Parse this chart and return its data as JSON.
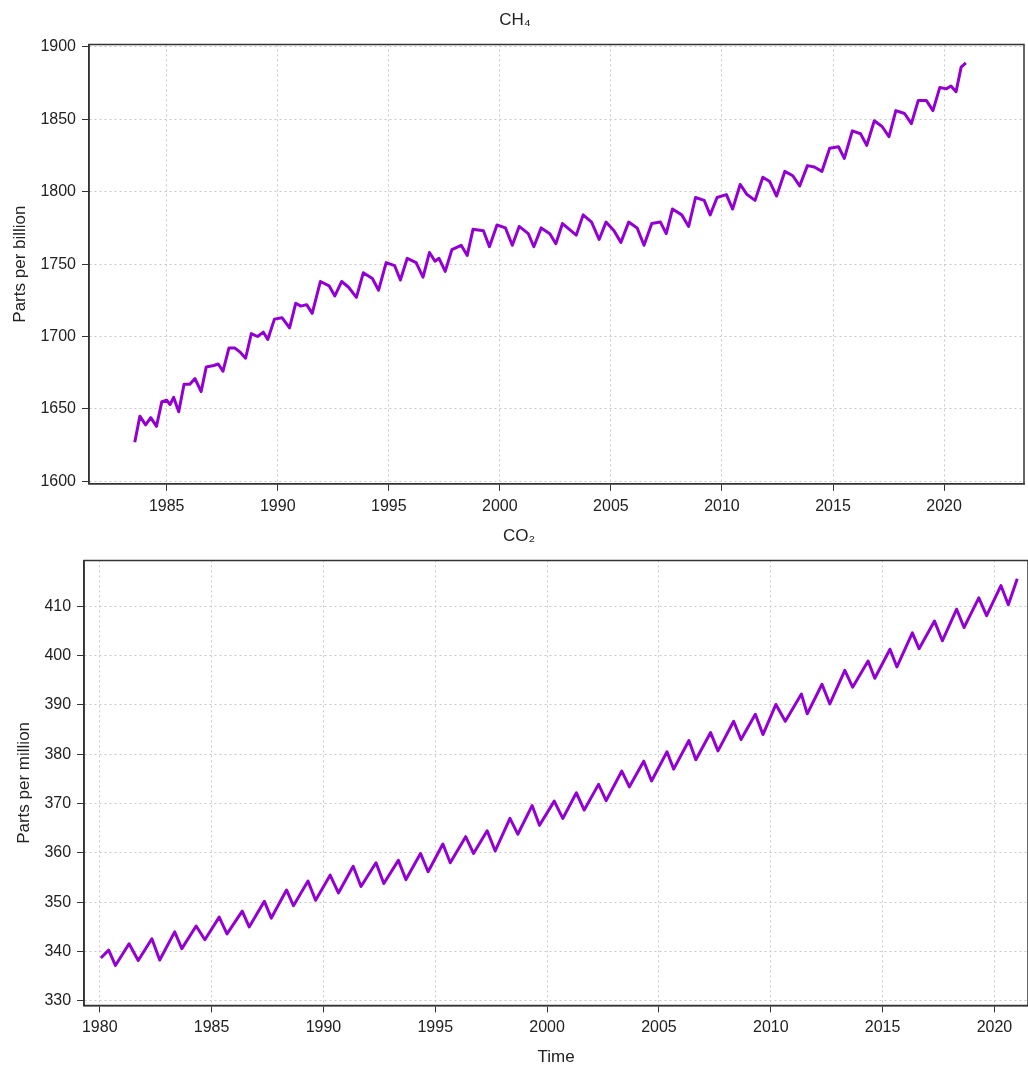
{
  "chart_data": [
    {
      "type": "line",
      "title": "CH₄",
      "ylabel": "Parts per billion",
      "xlim": [
        1981.5,
        2023.6
      ],
      "xticks": [
        1985,
        1990,
        1995,
        2000,
        2005,
        2010,
        2015,
        2020
      ],
      "ylim": [
        1598.3,
        1901.7
      ],
      "yticks": [
        1600,
        1650,
        1700,
        1750,
        1800,
        1850,
        1900
      ],
      "grid": true,
      "series": [
        {
          "color": "#9400d3",
          "x": [
            1983.56,
            1983.79,
            1984.05,
            1984.28,
            1984.54,
            1984.78,
            1985.0,
            1985.15,
            1985.31,
            1985.54,
            1985.78,
            1986.04,
            1986.27,
            1986.55,
            1986.78,
            1987.12,
            1987.32,
            1987.53,
            1987.8,
            1988.07,
            1988.32,
            1988.55,
            1988.81,
            1989.09,
            1989.35,
            1989.55,
            1989.85,
            1990.19,
            1990.53,
            1990.81,
            1991.04,
            1991.3,
            1991.55,
            1991.92,
            1992.31,
            1992.57,
            1992.88,
            1993.19,
            1993.54,
            1993.85,
            1994.26,
            1994.54,
            1994.88,
            1995.26,
            1995.52,
            1995.83,
            1996.23,
            1996.54,
            1996.83,
            1997.08,
            1997.26,
            1997.54,
            1997.84,
            1998.26,
            1998.53,
            1998.79,
            1999.26,
            1999.53,
            1999.87,
            2000.25,
            2000.56,
            2000.87,
            2001.28,
            2001.53,
            2001.86,
            2002.25,
            2002.52,
            2002.82,
            2003.13,
            2003.44,
            2003.75,
            2004.13,
            2004.47,
            2004.78,
            2005.14,
            2005.45,
            2005.8,
            2006.18,
            2006.49,
            2006.84,
            2007.23,
            2007.49,
            2007.77,
            2008.19,
            2008.5,
            2008.81,
            2009.2,
            2009.47,
            2009.78,
            2010.2,
            2010.48,
            2010.82,
            2011.13,
            2011.49,
            2011.84,
            2012.15,
            2012.46,
            2012.83,
            2013.19,
            2013.5,
            2013.85,
            2014.16,
            2014.5,
            2014.85,
            2015.25,
            2015.51,
            2015.87,
            2016.24,
            2016.52,
            2016.86,
            2017.21,
            2017.52,
            2017.83,
            2018.22,
            2018.53,
            2018.84,
            2019.2,
            2019.5,
            2019.81,
            2020.11,
            2020.31,
            2020.54,
            2020.77,
            2020.98
          ],
          "values": [
            1627,
            1645,
            1639,
            1644,
            1638,
            1655,
            1656,
            1653,
            1658,
            1648,
            1667,
            1667,
            1671,
            1662,
            1679,
            1680,
            1681,
            1676,
            1692,
            1692,
            1689,
            1685,
            1702,
            1700,
            1703,
            1698,
            1712,
            1713,
            1706,
            1723,
            1721,
            1722,
            1716,
            1738,
            1735,
            1728,
            1738,
            1734,
            1727,
            1744,
            1740,
            1732,
            1751,
            1749,
            1739,
            1754,
            1751,
            1741,
            1758,
            1752,
            1754,
            1745,
            1760,
            1763,
            1756,
            1774,
            1773,
            1762,
            1777,
            1775,
            1763,
            1776,
            1771,
            1762,
            1775,
            1771,
            1764,
            1778,
            1774,
            1770,
            1784,
            1779,
            1767,
            1779,
            1773,
            1765,
            1779,
            1775,
            1763,
            1778,
            1779,
            1771,
            1788,
            1784,
            1776,
            1796,
            1794,
            1784,
            1796,
            1798,
            1788,
            1805,
            1798,
            1794,
            1810,
            1807,
            1797,
            1814,
            1811,
            1804,
            1818,
            1817,
            1814,
            1830,
            1831,
            1823,
            1842,
            1840,
            1832,
            1849,
            1845,
            1838,
            1856,
            1854,
            1847,
            1863,
            1863,
            1856,
            1872,
            1871,
            1873,
            1869,
            1886,
            1889
          ]
        }
      ]
    },
    {
      "type": "line",
      "title": "CO₂",
      "xlabel": "Time",
      "ylabel": "Parts per million",
      "xlim": [
        1979.3,
        2021.5
      ],
      "xticks": [
        1980,
        1985,
        1990,
        1995,
        2000,
        2005,
        2010,
        2015,
        2020
      ],
      "ylim": [
        329.1,
        419.3
      ],
      "yticks": [
        330,
        340,
        350,
        360,
        370,
        380,
        390,
        400,
        410
      ],
      "grid": true,
      "series": [
        {
          "color": "#9400d3",
          "x": [
            1980.05,
            1980.4,
            1980.7,
            1981.31,
            1981.72,
            1982.33,
            1982.68,
            1983.35,
            1983.67,
            1984.31,
            1984.7,
            1985.34,
            1985.69,
            1986.37,
            1986.68,
            1987.36,
            1987.67,
            1988.35,
            1988.66,
            1989.31,
            1989.65,
            1990.3,
            1990.67,
            1991.33,
            1991.68,
            1992.35,
            1992.7,
            1993.35,
            1993.69,
            1994.34,
            1994.68,
            1995.34,
            1995.67,
            1996.36,
            1996.71,
            1997.32,
            1997.68,
            1998.34,
            1998.69,
            1999.33,
            1999.66,
            2000.32,
            2000.7,
            2001.31,
            2001.66,
            2002.3,
            2002.64,
            2003.34,
            2003.68,
            2004.32,
            2004.67,
            2005.36,
            2005.66,
            2006.34,
            2006.65,
            2007.31,
            2007.64,
            2008.34,
            2008.67,
            2009.31,
            2009.65,
            2010.23,
            2010.65,
            2011.37,
            2011.63,
            2012.29,
            2012.64,
            2013.31,
            2013.66,
            2014.35,
            2014.65,
            2015.33,
            2015.64,
            2016.33,
            2016.63,
            2017.32,
            2017.67,
            2018.31,
            2018.64,
            2019.3,
            2019.65,
            2020.29,
            2020.62,
            2021.02
          ],
          "values": [
            338.7,
            340.3,
            337.2,
            341.6,
            338.2,
            342.6,
            338.3,
            344.0,
            340.6,
            345.2,
            342.4,
            347.0,
            343.6,
            348.2,
            345.0,
            350.2,
            346.8,
            352.5,
            349.3,
            354.3,
            350.4,
            355.5,
            351.9,
            357.3,
            353.2,
            358.0,
            353.8,
            358.5,
            354.6,
            359.9,
            356.2,
            361.8,
            358.0,
            363.3,
            359.9,
            364.5,
            360.4,
            367.0,
            363.8,
            369.6,
            365.6,
            370.5,
            367.0,
            372.2,
            368.7,
            373.9,
            370.6,
            376.6,
            373.4,
            378.6,
            374.6,
            380.5,
            377.0,
            382.8,
            378.9,
            384.4,
            380.7,
            386.7,
            383.0,
            388.1,
            384.0,
            390.1,
            386.7,
            392.2,
            388.2,
            394.2,
            390.2,
            397.0,
            393.6,
            398.9,
            395.4,
            401.3,
            397.7,
            404.6,
            401.4,
            407.0,
            403.0,
            409.4,
            405.7,
            411.7,
            408.1,
            414.2,
            410.3,
            415.6
          ]
        }
      ]
    }
  ]
}
